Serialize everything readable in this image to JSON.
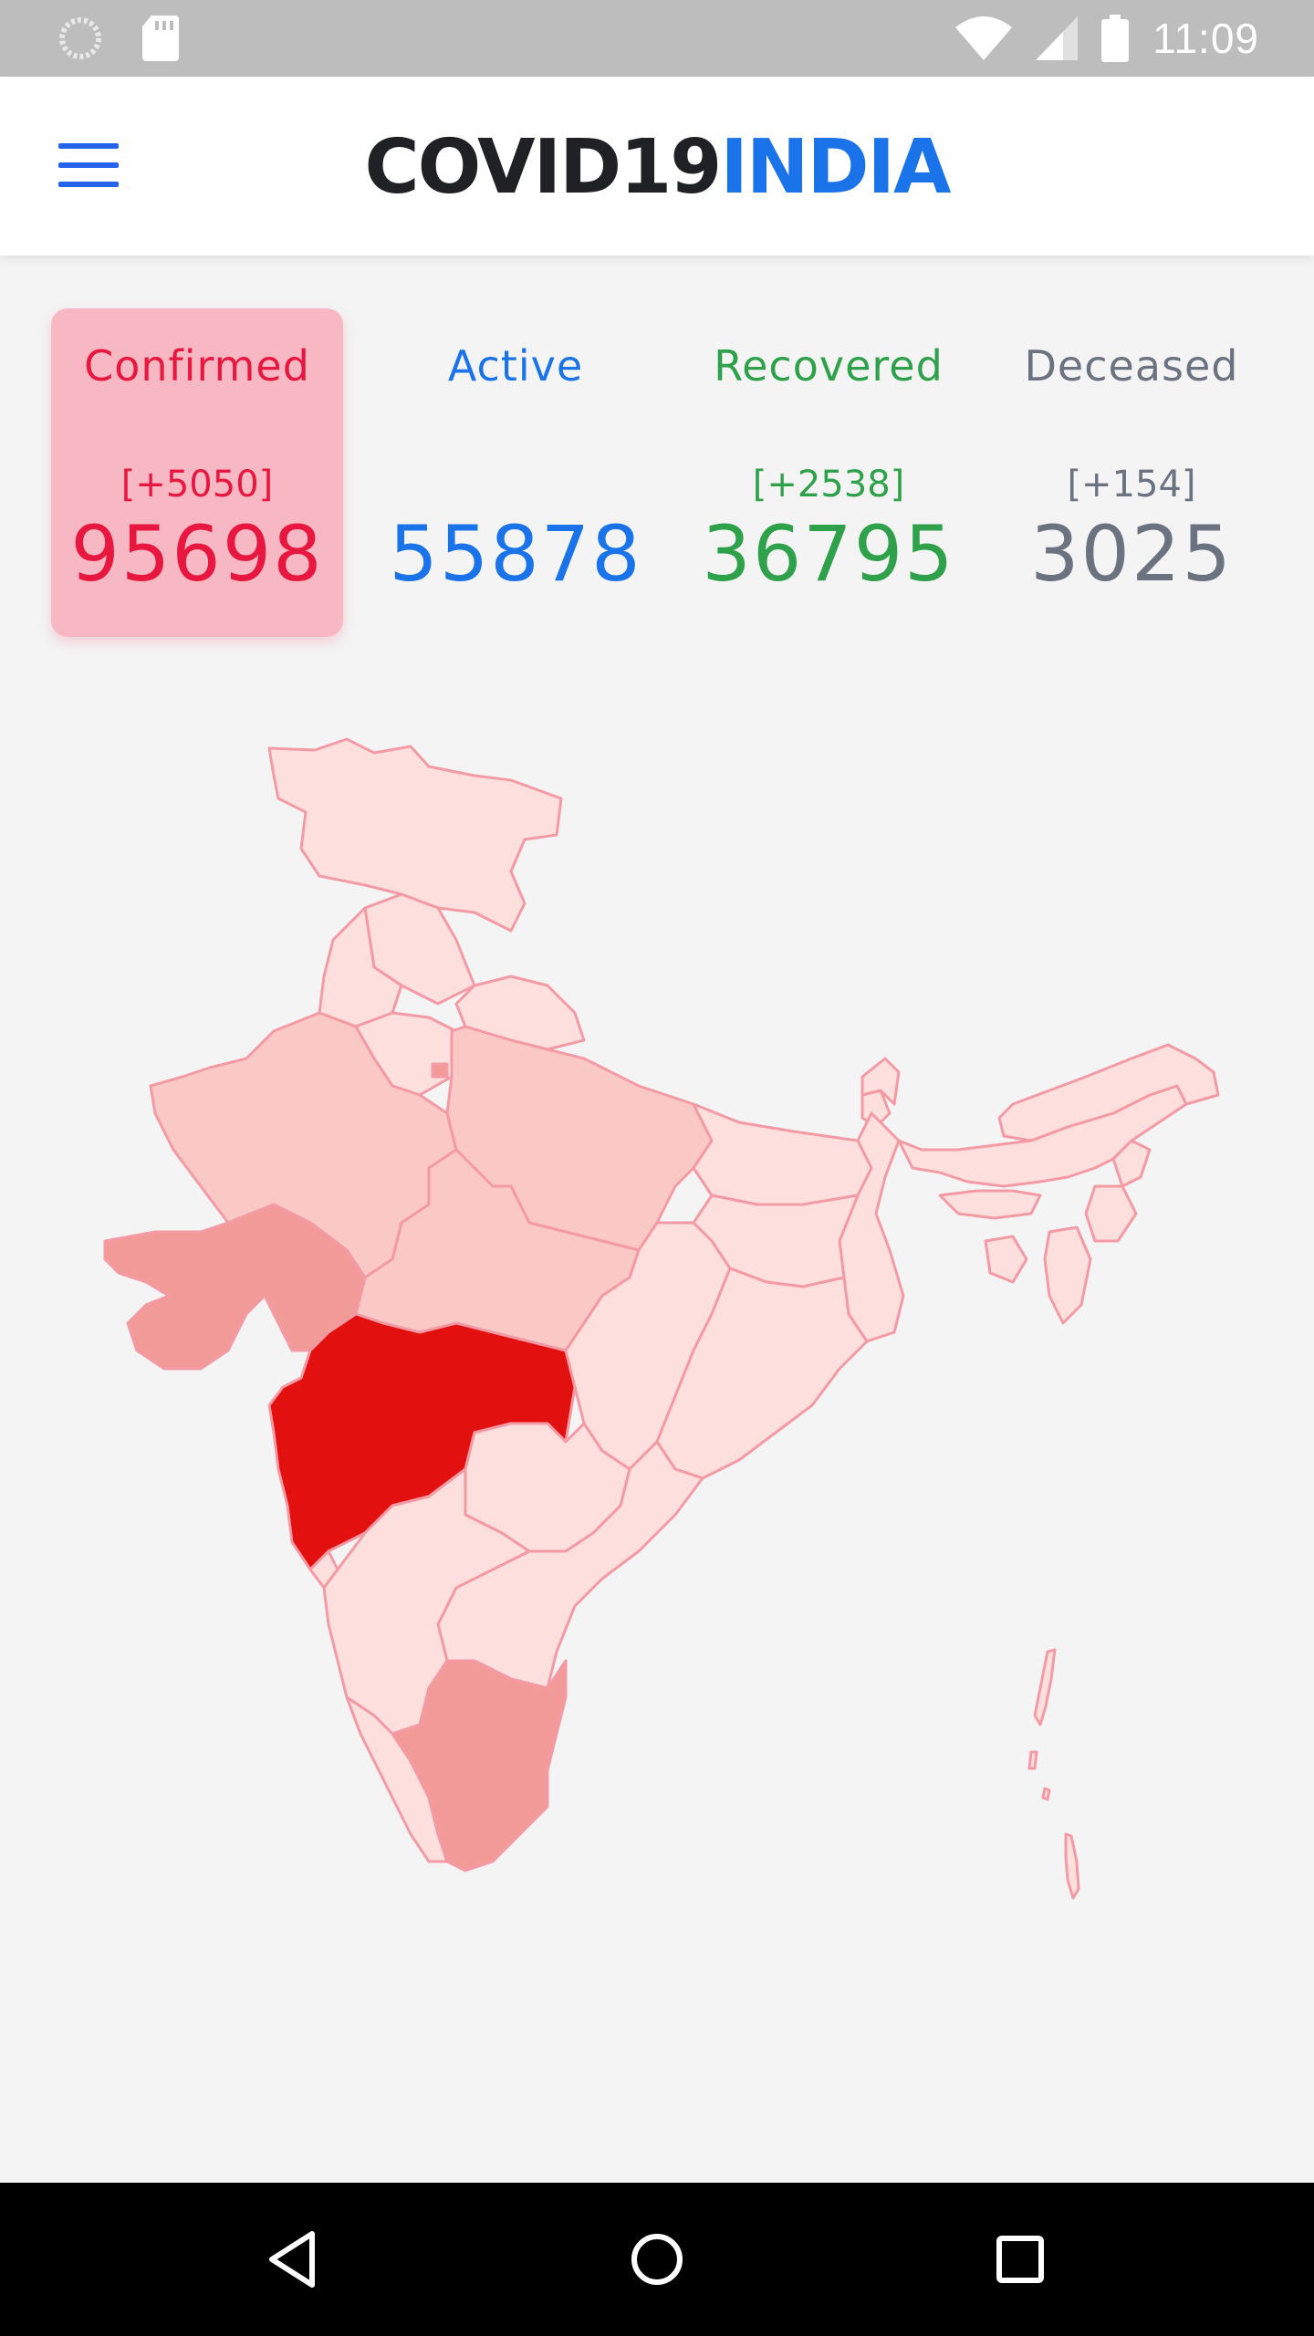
{
  "status_bar": {
    "time": "11:09",
    "icons": [
      "loading-circle-icon",
      "sd-card-icon",
      "wifi-icon",
      "cell-signal-icon",
      "battery-icon"
    ]
  },
  "header": {
    "title_part1": "COVID19",
    "title_part2": "INDIA",
    "menu_icon": "hamburger-menu-icon",
    "colors": {
      "title_dark": "#1f2125",
      "title_accent": "#1a73e8"
    }
  },
  "stats": {
    "confirmed": {
      "label": "Confirmed",
      "delta": "[+5050]",
      "value": "95698",
      "color": "#e8173f"
    },
    "active": {
      "label": "Active",
      "delta": "",
      "value": "55878",
      "color": "#1a73e8"
    },
    "recovered": {
      "label": "Recovered",
      "delta": "[+2538]",
      "value": "36795",
      "color": "#2ea14a"
    },
    "deceased": {
      "label": "Deceased",
      "delta": "[+154]",
      "value": "3025",
      "color": "#6b7280"
    }
  },
  "map": {
    "name": "India states map",
    "scale_colors": [
      "#fde0dd",
      "#fac9c6",
      "#f19a98",
      "#e31010"
    ],
    "highlighted_state": "Maharashtra"
  },
  "nav_bar": {
    "icons": [
      "back-icon",
      "home-icon",
      "recents-icon"
    ]
  }
}
